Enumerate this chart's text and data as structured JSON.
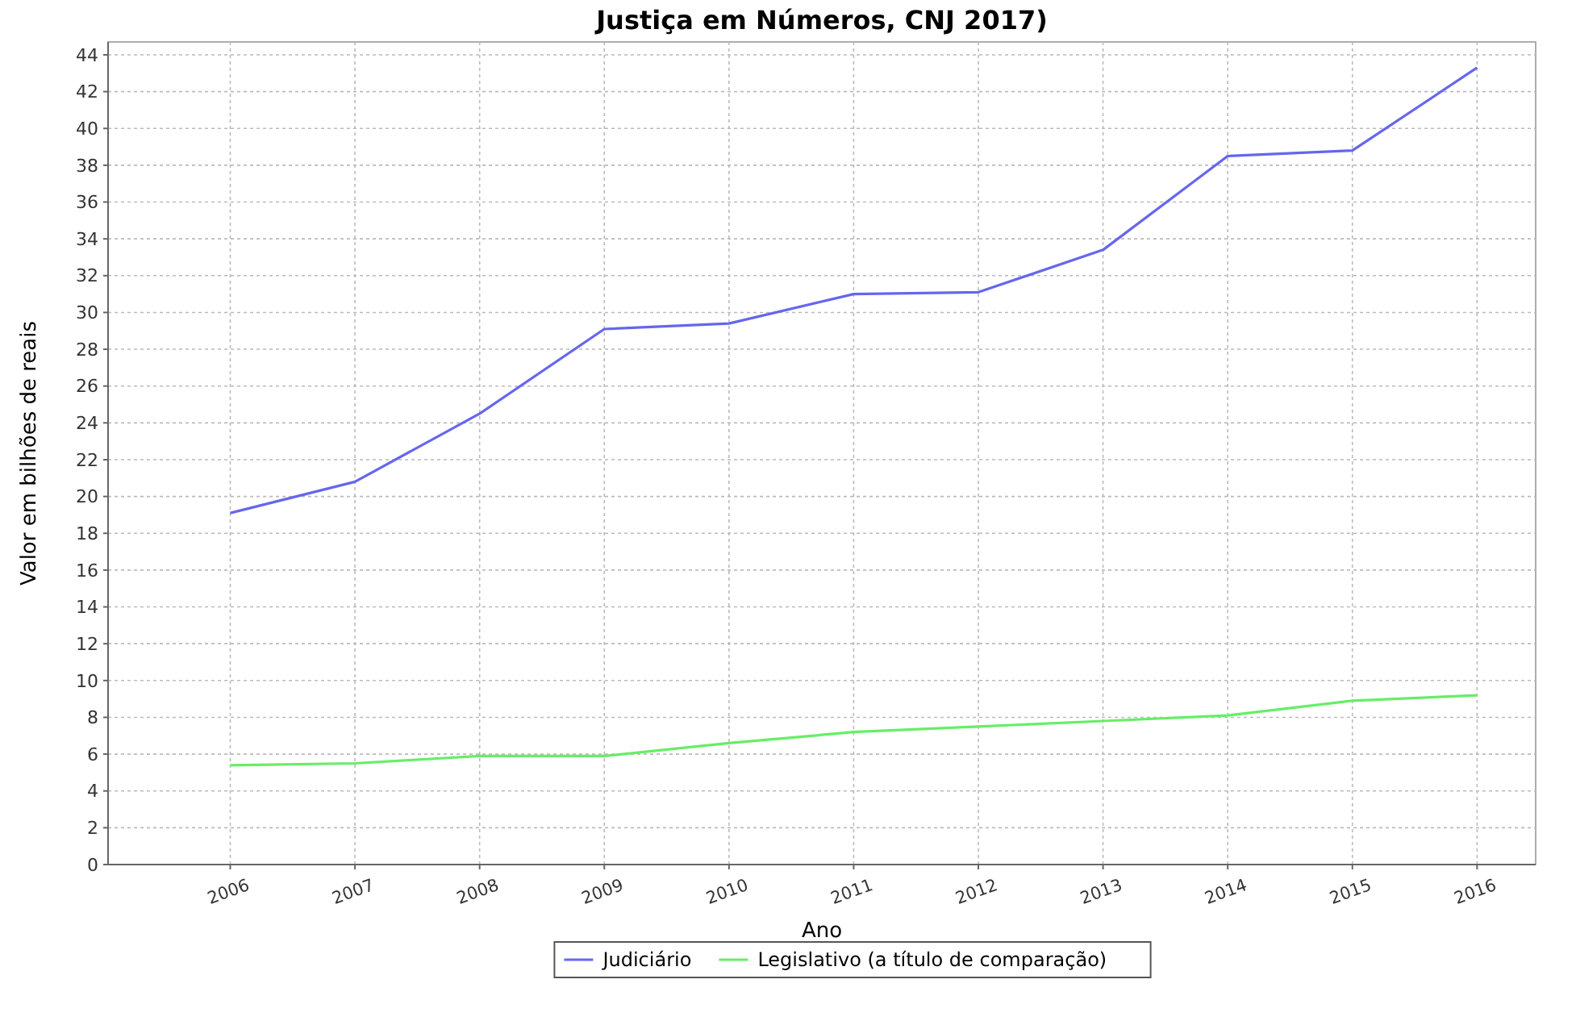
{
  "chart_data": {
    "type": "line",
    "title": "Justiça em Números, CNJ 2017)",
    "xlabel": "Ano",
    "ylabel": "Valor em bilhões de reais",
    "categories": [
      "2006",
      "2007",
      "2008",
      "2009",
      "2010",
      "2011",
      "2012",
      "2013",
      "2014",
      "2015",
      "2016"
    ],
    "series": [
      {
        "name": "Judiciário",
        "color": "#6666ee",
        "values": [
          19.1,
          20.8,
          24.5,
          29.1,
          29.4,
          31.0,
          31.1,
          33.4,
          38.5,
          38.8,
          43.3
        ]
      },
      {
        "name": "Legislativo (a título de comparação)",
        "color": "#66ee66",
        "values": [
          5.4,
          5.5,
          5.9,
          5.9,
          6.6,
          7.2,
          7.5,
          7.8,
          8.1,
          8.9,
          9.2
        ]
      }
    ],
    "ylim": [
      0,
      44.7
    ],
    "yticks": [
      0,
      2,
      4,
      6,
      8,
      10,
      12,
      14,
      16,
      18,
      20,
      22,
      24,
      26,
      28,
      30,
      32,
      34,
      36,
      38,
      40,
      42,
      44
    ],
    "grid": true,
    "legend": "bottom",
    "marker": "none",
    "line_style": "solid"
  }
}
